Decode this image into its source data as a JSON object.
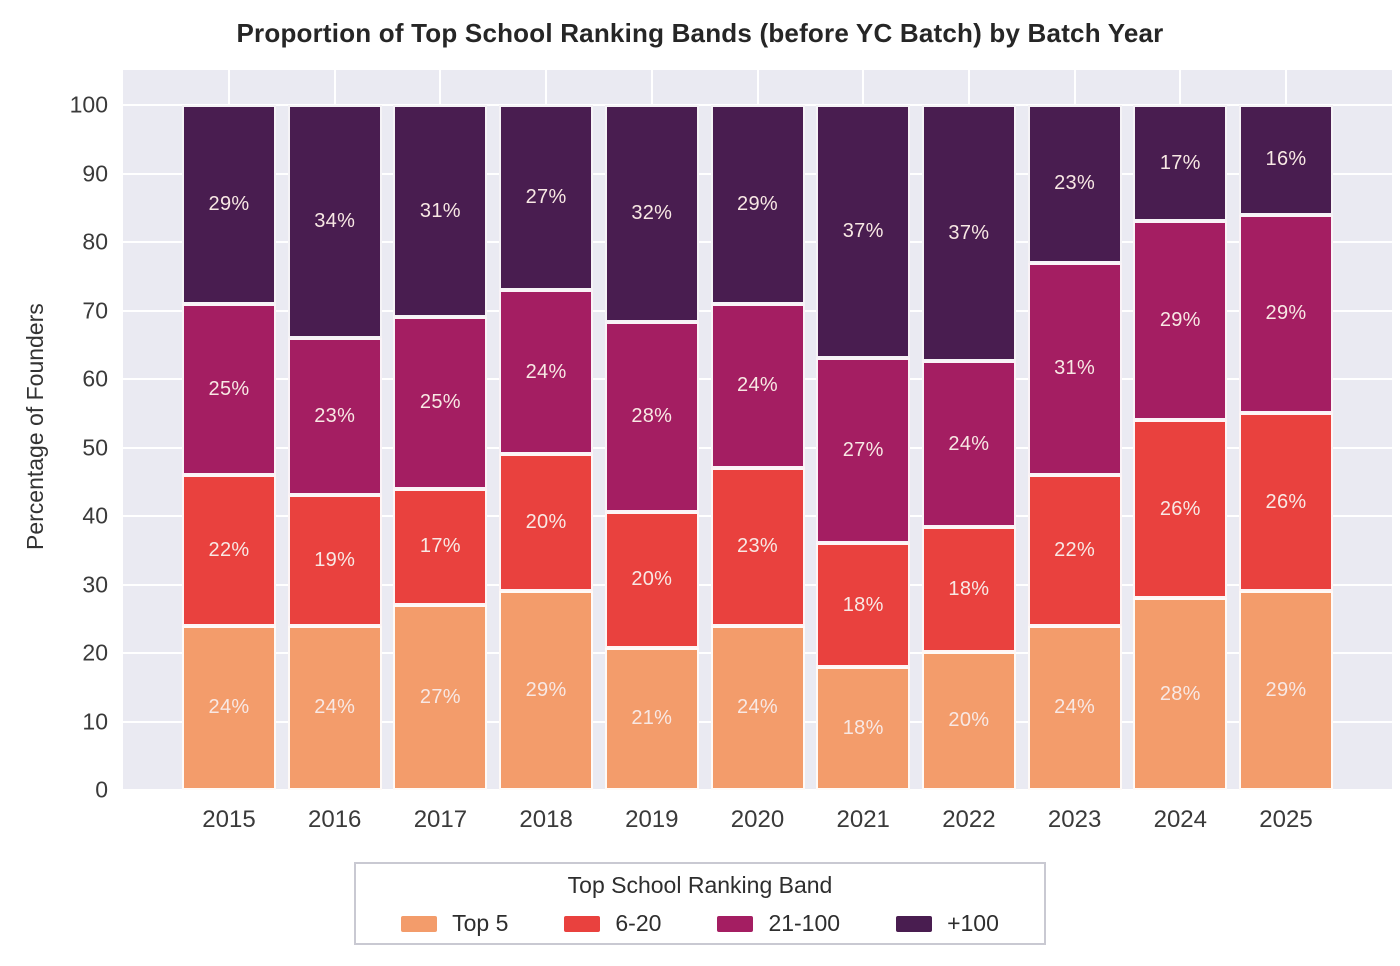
{
  "chart_data": {
    "type": "bar",
    "stacked": true,
    "title": "Proportion of Top School Ranking Bands (before YC Batch) by Batch Year",
    "xlabel": "",
    "ylabel": "Percentage of Founders",
    "categories": [
      "2015",
      "2016",
      "2017",
      "2018",
      "2019",
      "2020",
      "2021",
      "2022",
      "2023",
      "2024",
      "2025"
    ],
    "series": [
      {
        "name": "Top 5",
        "color": "#F39C6B",
        "values": [
          24,
          24,
          27,
          29,
          21,
          24,
          18,
          20,
          24,
          28,
          29
        ]
      },
      {
        "name": "6-20",
        "color": "#E9413E",
        "values": [
          22,
          19,
          17,
          20,
          20,
          23,
          18,
          18,
          22,
          26,
          26
        ]
      },
      {
        "name": "21-100",
        "color": "#A41E62",
        "values": [
          25,
          23,
          25,
          24,
          28,
          24,
          27,
          24,
          31,
          29,
          29
        ]
      },
      {
        "name": "+100",
        "color": "#491D50",
        "values": [
          29,
          34,
          31,
          27,
          32,
          29,
          37,
          37,
          23,
          17,
          16
        ]
      }
    ],
    "value_suffix": "%",
    "ylim": [
      0,
      105
    ],
    "yticks": [
      0,
      10,
      20,
      30,
      40,
      50,
      60,
      70,
      80,
      90,
      100
    ],
    "grid": true,
    "legend_title": "Top School Ranking Band",
    "legend_position": "bottom",
    "colors": {
      "figure_background": "#FFFFFF",
      "axes_background": "#EAEAF2",
      "gridline": "#FFFFFF",
      "bar_label_text": "#F8E8E4",
      "tick_text": "#3A3A3A",
      "title_text": "#262626"
    }
  }
}
